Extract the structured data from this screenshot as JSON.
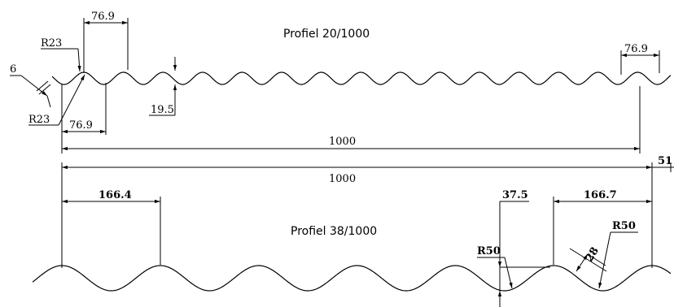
{
  "profile_top": {
    "title": "Profiel 20/1000",
    "dims": {
      "pitch_top": "76.9",
      "pitch_right": "76.9",
      "pitch_bottom": "76.9",
      "radius_top": "R23",
      "radius_bottom": "R23",
      "thickness": "6",
      "height": "19.5",
      "width": "1000"
    }
  },
  "profile_bottom": {
    "title": "Profiel 38/1000",
    "dims": {
      "width": "1000",
      "overlap": "51",
      "pitch_left": "166.4",
      "pitch_right": "166.7",
      "height": "37.5",
      "radius_left": "R50",
      "radius_right": "R50",
      "depth": "28"
    }
  }
}
